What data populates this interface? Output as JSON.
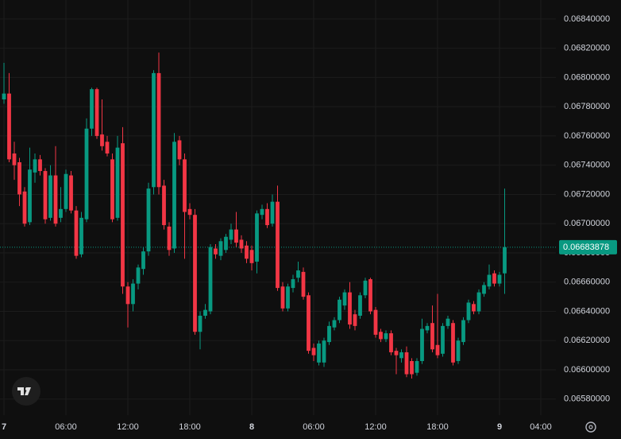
{
  "chart_data": {
    "type": "candlestick",
    "categories": [
      "7",
      null,
      null,
      null,
      null,
      null,
      null,
      null,
      null,
      null,
      null,
      null,
      "06:00",
      null,
      null,
      null,
      null,
      null,
      null,
      null,
      null,
      null,
      null,
      null,
      "12:00",
      null,
      null,
      null,
      null,
      null,
      null,
      null,
      null,
      null,
      null,
      null,
      "18:00",
      null,
      null,
      null,
      null,
      null,
      null,
      null,
      null,
      null,
      null,
      null,
      "8",
      null,
      null,
      null,
      null,
      null,
      null,
      null,
      null,
      null,
      null,
      null,
      "06:00",
      null,
      null,
      null,
      null,
      null,
      null,
      null,
      null,
      null,
      null,
      null,
      "12:00",
      null,
      null,
      null,
      null,
      null,
      null,
      null,
      null,
      null,
      null,
      null,
      "18:00",
      null,
      null,
      null,
      null,
      null,
      null,
      null,
      null,
      null,
      null,
      null,
      "9",
      null,
      null,
      null,
      null,
      null,
      null,
      null,
      "04:00"
    ],
    "open": [
      0.06785,
      0.06789,
      0.06748,
      0.06742,
      0.06722,
      0.06701,
      0.06735,
      0.06744,
      0.06736,
      0.06704,
      0.06733,
      0.06704,
      0.0671,
      0.06733,
      0.06709,
      0.06679,
      0.06703,
      0.06765,
      0.06792,
      0.06761,
      0.06756,
      0.06744,
      0.06704,
      0.06755,
      0.06657,
      0.06645,
      0.06659,
      0.06669,
      0.06681,
      0.06725,
      0.06803,
      0.06726,
      0.06698,
      0.06683,
      0.06757,
      0.06744,
      0.0671,
      0.06706,
      0.06626,
      0.06637,
      0.0664,
      0.06683,
      0.06678,
      0.06682,
      0.06689,
      0.06696,
      0.06689,
      0.06685,
      0.06682,
      0.06674,
      0.06706,
      0.0671,
      0.067,
      0.06715,
      0.06657,
      0.06642,
      0.06656,
      0.06663,
      0.06667,
      0.06651,
      0.06615,
      0.06605,
      0.06605,
      0.06619,
      0.06629,
      0.06634,
      0.06644,
      0.06653,
      0.06638,
      0.06637,
      0.06651,
      0.06662,
      0.06641,
      0.06626,
      0.06621,
      0.06625,
      0.06613,
      0.06608,
      0.06612,
      0.06606,
      0.06598,
      0.06606,
      0.06627,
      0.06632,
      0.06617,
      0.06611,
      0.0663,
      0.06632,
      0.06606,
      0.06619,
      0.06634,
      0.06645,
      0.0664,
      0.06652,
      0.06657,
      0.06666,
      0.06659,
      0.06666,
      null,
      null,
      null,
      null,
      null,
      null,
      null
    ],
    "high": [
      0.0681,
      0.06803,
      0.06756,
      0.06745,
      0.06725,
      0.06752,
      0.06748,
      0.06747,
      0.06738,
      0.0674,
      0.06753,
      0.06725,
      0.06737,
      0.06736,
      0.06712,
      0.06708,
      0.06772,
      0.06793,
      0.06793,
      0.06785,
      0.0676,
      0.06748,
      0.0676,
      0.06766,
      0.0666,
      0.06662,
      0.06672,
      0.06684,
      0.06728,
      0.06805,
      0.06817,
      0.0673,
      0.06701,
      0.06762,
      0.0676,
      0.06748,
      0.06714,
      0.0671,
      0.0664,
      0.06645,
      0.06686,
      0.06686,
      0.0669,
      0.06693,
      0.067,
      0.06708,
      0.06692,
      0.06688,
      0.06685,
      0.06709,
      0.06713,
      0.06714,
      0.0672,
      0.06726,
      0.0666,
      0.06659,
      0.06665,
      0.06674,
      0.0667,
      0.06653,
      0.06618,
      0.0662,
      0.06622,
      0.06633,
      0.06636,
      0.0665,
      0.06655,
      0.0666,
      0.06641,
      0.06653,
      0.06663,
      0.06663,
      0.06643,
      0.06628,
      0.06627,
      0.06627,
      0.06615,
      0.06614,
      0.06616,
      0.06608,
      0.06608,
      0.06635,
      0.06632,
      0.06644,
      0.06652,
      0.06632,
      0.06637,
      0.06634,
      0.06622,
      0.06636,
      0.06648,
      0.06647,
      0.06655,
      0.0666,
      0.06672,
      0.06668,
      0.06667,
      0.06724,
      null,
      null,
      null,
      null,
      null,
      null,
      null
    ],
    "low": [
      0.06782,
      0.06742,
      0.0673,
      0.06712,
      0.06698,
      0.06699,
      0.06728,
      0.06733,
      0.067,
      0.06702,
      0.06698,
      0.06701,
      0.06708,
      0.06707,
      0.06676,
      0.06677,
      0.06701,
      0.0676,
      0.06758,
      0.0675,
      0.06746,
      0.06701,
      0.06702,
      0.06652,
      0.06629,
      0.0664,
      0.06655,
      0.06665,
      0.06678,
      0.0672,
      0.0672,
      0.06696,
      0.06678,
      0.0668,
      0.0674,
      0.06676,
      0.06703,
      0.06624,
      0.06614,
      0.06635,
      0.06638,
      0.06676,
      0.06675,
      0.0668,
      0.06686,
      0.06684,
      0.0668,
      0.06673,
      0.06668,
      0.06666,
      0.06703,
      0.06697,
      0.06698,
      0.06654,
      0.0664,
      0.0664,
      0.06653,
      0.0666,
      0.06648,
      0.06611,
      0.06606,
      0.06603,
      0.06602,
      0.06617,
      0.06627,
      0.06632,
      0.06641,
      0.06628,
      0.06627,
      0.06635,
      0.06649,
      0.06638,
      0.06622,
      0.06619,
      0.06619,
      0.0661,
      0.06597,
      0.06605,
      0.06595,
      0.06594,
      0.06596,
      0.06604,
      0.06625,
      0.06612,
      0.06608,
      0.06609,
      0.06628,
      0.06603,
      0.06604,
      0.06617,
      0.06632,
      0.06638,
      0.06638,
      0.0665,
      0.06655,
      0.06657,
      0.06657,
      0.06652,
      null,
      null,
      null,
      null,
      null,
      null,
      null
    ],
    "close": [
      0.06789,
      0.06744,
      0.0674,
      0.0672,
      0.067,
      0.06737,
      0.06744,
      0.06736,
      0.06703,
      0.06733,
      0.067,
      0.0671,
      0.06734,
      0.06709,
      0.06678,
      0.06704,
      0.06765,
      0.06792,
      0.0676,
      0.06753,
      0.06748,
      0.06703,
      0.06752,
      0.06657,
      0.06645,
      0.06659,
      0.0667,
      0.06681,
      0.06724,
      0.06803,
      0.06725,
      0.06699,
      0.06682,
      0.06756,
      0.06744,
      0.06708,
      0.06706,
      0.06626,
      0.06637,
      0.06641,
      0.06684,
      0.06679,
      0.06688,
      0.06691,
      0.06696,
      0.06687,
      0.06683,
      0.06676,
      0.06673,
      0.06707,
      0.0671,
      0.06699,
      0.06715,
      0.06656,
      0.06642,
      0.06657,
      0.06662,
      0.06668,
      0.0665,
      0.06613,
      0.0661,
      0.06618,
      0.0662,
      0.0663,
      0.06634,
      0.06648,
      0.06653,
      0.06631,
      0.0663,
      0.06651,
      0.06661,
      0.0664,
      0.06624,
      0.06621,
      0.06625,
      0.06612,
      0.0661,
      0.06612,
      0.06597,
      0.06597,
      0.06606,
      0.06628,
      0.0663,
      0.06614,
      0.0661,
      0.0663,
      0.06635,
      0.06605,
      0.0662,
      0.06634,
      0.06646,
      0.0664,
      0.06653,
      0.06658,
      0.06665,
      0.06659,
      0.06665,
      0.06683878,
      null,
      null,
      null,
      null,
      null,
      null,
      null
    ],
    "up_color": "#089981",
    "down_color": "#f23645",
    "ylim": [
      0.06569,
      0.06853
    ],
    "yticks": [
      {
        "value": 0.0658,
        "label": "0.06580000"
      },
      {
        "value": 0.066,
        "label": "0.06600000"
      },
      {
        "value": 0.0662,
        "label": "0.06620000"
      },
      {
        "value": 0.0664,
        "label": "0.06640000"
      },
      {
        "value": 0.0666,
        "label": "0.06660000"
      },
      {
        "value": 0.0668,
        "label": "0.06680000"
      },
      {
        "value": 0.067,
        "label": "0.06700000"
      },
      {
        "value": 0.0672,
        "label": "0.06720000"
      },
      {
        "value": 0.0674,
        "label": "0.06740000"
      },
      {
        "value": 0.0676,
        "label": "0.06760000"
      },
      {
        "value": 0.0678,
        "label": "0.06780000"
      },
      {
        "value": 0.068,
        "label": "0.06800000"
      },
      {
        "value": 0.0682,
        "label": "0.06820000"
      },
      {
        "value": 0.0684,
        "label": "0.06840000"
      }
    ],
    "grid": true
  }
}
